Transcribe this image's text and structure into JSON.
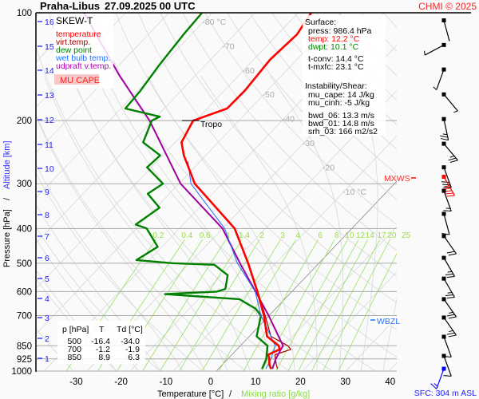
{
  "title": {
    "station": "Praha-Libus",
    "datetime": "27.09.2025 00 UTC"
  },
  "credit": "CHMI © 2025",
  "legend": {
    "title": "SKEW-T",
    "items": [
      {
        "label": "temperature",
        "color": "#ff0000"
      },
      {
        "label": "virt.temp.",
        "color": "#a00000"
      },
      {
        "label": "dew point",
        "color": "#008000"
      },
      {
        "label": "wet bulb temp.",
        "color": "#1e6fff"
      },
      {
        "label": "udpraft v.temp.",
        "color": "#a000a0"
      }
    ],
    "cape_label": "MU CAPE"
  },
  "surface": {
    "heading": "Surface:",
    "press": "press: 986.4 hPa",
    "temp": "temp: 12.2 °C",
    "dwpt": "dwpt: 10.1 °C",
    "t_conv": "t-conv: 14.4 °C",
    "t_mxfc": "t-mxfc: 23.1 °C",
    "instability_heading": "Instability/Shear:",
    "mu_cape": "mu_cape: 14 J/kg",
    "mu_cinh": "mu_cinh: -5 J/kg",
    "bwd_06": "bwd_06: 13.3 m/s",
    "bwd_01": "bwd_01: 14.8 m/s",
    "srh_03": "srh_03: 166 m2/s2"
  },
  "table": {
    "headers": [
      "p [hPa]",
      "T",
      "Td [°C]"
    ],
    "rows": [
      [
        "500",
        "-16.4",
        "-34.0"
      ],
      [
        "700",
        "-1.2",
        "-1.9"
      ],
      [
        "850",
        "8.9",
        "6.3"
      ]
    ]
  },
  "markers": {
    "tropo": "Tropo",
    "tropo_p": 200,
    "mxws": "MXWS",
    "mxws_p": 289,
    "wbzl": "WBZL",
    "wbzl_p": 724
  },
  "sfc_label": "SFC: 304 m ASL",
  "chart_data": {
    "type": "line",
    "subtype": "skew-T log-p",
    "xlabel": "Temperature [°C]",
    "xlabel_sep": "/",
    "xlabel2": "Mixing ratio [g/kg]",
    "ylabel": "Pressure [hPa]",
    "ylabel_sep": "/",
    "ylabel2": "Altitude [km]",
    "yscale": "log",
    "ylim": [
      1000,
      100
    ],
    "pressure_ticks": [
      "100",
      "200",
      "300",
      "400",
      "500",
      "600",
      "700",
      "850",
      "925",
      "1000"
    ],
    "temperature_ticks": [
      "-30",
      "-20",
      "-10",
      "0",
      "10",
      "20",
      "30",
      "40"
    ],
    "altitude_ticks": [
      "1",
      "2",
      "3",
      "4",
      "5",
      "6",
      "7",
      "8",
      "9",
      "10",
      "11",
      "12",
      "13",
      "14",
      "15",
      "16"
    ],
    "isotherm_labels": [
      {
        "t": -80,
        "text": "-80 °C"
      },
      {
        "t": -70,
        "text": "-70"
      },
      {
        "t": -60,
        "text": "-60"
      },
      {
        "t": -50,
        "text": "-50"
      },
      {
        "t": -40,
        "text": "-40"
      },
      {
        "t": -30,
        "text": "-30"
      },
      {
        "t": -20,
        "text": "-20"
      },
      {
        "t": -10,
        "text": "-10 °C"
      }
    ],
    "mixing_ratio_labels": [
      "0.2",
      "0.4",
      "0.6",
      "1",
      "1.4",
      "2",
      "3",
      "4",
      "6",
      "8",
      "10",
      "12",
      "14",
      "17",
      "20",
      "25"
    ],
    "grid": true,
    "colors": {
      "isobar": "#aaaaaa",
      "isotherm": "#d8d8d8",
      "adiabat": "#d8d8d8",
      "mixing_ratio": "#99e060",
      "zero_isotherm": "#777777"
    },
    "series": [
      {
        "name": "temperature",
        "color": "#ff0000",
        "points": [
          [
            986,
            12.2
          ],
          [
            960,
            10.9
          ],
          [
            925,
            9.6
          ],
          [
            900,
            8.4
          ],
          [
            870,
            9.9
          ],
          [
            850,
            8.9
          ],
          [
            800,
            4.1
          ],
          [
            700,
            -1.2
          ],
          [
            600,
            -8.0
          ],
          [
            500,
            -16.4
          ],
          [
            400,
            -27.2
          ],
          [
            300,
            -46.3
          ],
          [
            250,
            -55.1
          ],
          [
            230,
            -58.5
          ],
          [
            200,
            -60.6
          ],
          [
            195,
            -58.9
          ],
          [
            185,
            -55.4
          ],
          [
            165,
            -55.2
          ],
          [
            135,
            -56.2
          ],
          [
            115,
            -55.5
          ],
          [
            100,
            -57.0
          ]
        ]
      },
      {
        "name": "virt.temp.",
        "color": "#a00000",
        "points": [
          [
            986,
            13.7
          ],
          [
            960,
            12.5
          ],
          [
            925,
            11.0
          ],
          [
            900,
            10.0
          ],
          [
            870,
            12.5
          ],
          [
            850,
            11.0
          ],
          [
            800,
            5.0
          ],
          [
            700,
            -0.9
          ],
          [
            600,
            -7.9
          ],
          [
            500,
            -16.3
          ],
          [
            400,
            -27.2
          ],
          [
            300,
            -46.3
          ],
          [
            250,
            -55.1
          ],
          [
            230,
            -58.5
          ],
          [
            200,
            -60.6
          ],
          [
            195,
            -58.9
          ],
          [
            185,
            -55.4
          ],
          [
            165,
            -55.2
          ],
          [
            135,
            -56.2
          ],
          [
            115,
            -55.5
          ],
          [
            100,
            -57.0
          ]
        ]
      },
      {
        "name": "dew point",
        "color": "#008000",
        "points": [
          [
            986,
            10.1
          ],
          [
            925,
            8.9
          ],
          [
            850,
            6.3
          ],
          [
            800,
            1.7
          ],
          [
            700,
            -1.9
          ],
          [
            670,
            -4.6
          ],
          [
            630,
            -10.5
          ],
          [
            610,
            -28.9
          ],
          [
            600,
            -17.4
          ],
          [
            590,
            -16.0
          ],
          [
            540,
            -18.5
          ],
          [
            505,
            -23.9
          ],
          [
            500,
            -34.0
          ],
          [
            490,
            -43.0
          ],
          [
            450,
            -41.0
          ],
          [
            400,
            -47.6
          ],
          [
            390,
            -51.0
          ],
          [
            350,
            -49.2
          ],
          [
            320,
            -55.0
          ],
          [
            300,
            -53.7
          ],
          [
            270,
            -61.0
          ],
          [
            250,
            -60.6
          ],
          [
            230,
            -67.4
          ],
          [
            200,
            -70.2
          ],
          [
            195,
            -69.2
          ],
          [
            185,
            -79.0
          ],
          [
            165,
            -79.4
          ],
          [
            140,
            -80.7
          ],
          [
            115,
            -81.8
          ],
          [
            100,
            -82.3
          ]
        ]
      },
      {
        "name": "wet bulb temp.",
        "color": "#1e6fff",
        "points": [
          [
            986,
            11.0
          ],
          [
            925,
            10.0
          ],
          [
            850,
            8.1
          ],
          [
            700,
            -1.9
          ],
          [
            600,
            -8.5
          ],
          [
            500,
            -18.9
          ],
          [
            400,
            -29.5
          ],
          [
            300,
            -47.2
          ],
          [
            260,
            -52.8
          ]
        ]
      },
      {
        "name": "udpraft v.temp.",
        "color": "#a000a0",
        "points": [
          [
            986,
            12.5
          ],
          [
            925,
            11.1
          ],
          [
            870,
            10.2
          ],
          [
            850,
            9.9
          ],
          [
            700,
            -0.1
          ],
          [
            500,
            -18.3
          ],
          [
            400,
            -30.0
          ],
          [
            300,
            -49.6
          ],
          [
            200,
            -70.7
          ],
          [
            150,
            -87.5
          ],
          [
            100,
            -109.7
          ]
        ]
      }
    ],
    "wind": [
      {
        "p": 105,
        "dir": 165,
        "speed": 3
      },
      {
        "p": 123,
        "dir": 242,
        "speed": 5
      },
      {
        "p": 144,
        "dir": 200,
        "speed": 5
      },
      {
        "p": 169,
        "dir": 140,
        "speed": 5
      },
      {
        "p": 198,
        "dir": 168,
        "speed": 25
      },
      {
        "p": 232,
        "dir": 140,
        "speed": 25
      },
      {
        "p": 270,
        "dir": 160,
        "speed": 30
      },
      {
        "p": 287,
        "dir": 150,
        "speed": 45,
        "max": true
      },
      {
        "p": 314,
        "dir": 160,
        "speed": 15
      },
      {
        "p": 364,
        "dir": 165,
        "speed": 10
      },
      {
        "p": 420,
        "dir": 145,
        "speed": 20
      },
      {
        "p": 483,
        "dir": 150,
        "speed": 25
      },
      {
        "p": 552,
        "dir": 150,
        "speed": 25
      },
      {
        "p": 630,
        "dir": 145,
        "speed": 25
      },
      {
        "p": 709,
        "dir": 145,
        "speed": 25
      },
      {
        "p": 802,
        "dir": 160,
        "speed": 10
      },
      {
        "p": 907,
        "dir": 160,
        "speed": 10
      },
      {
        "p": 985,
        "dir": 200,
        "speed": 15,
        "surface": true
      }
    ]
  }
}
